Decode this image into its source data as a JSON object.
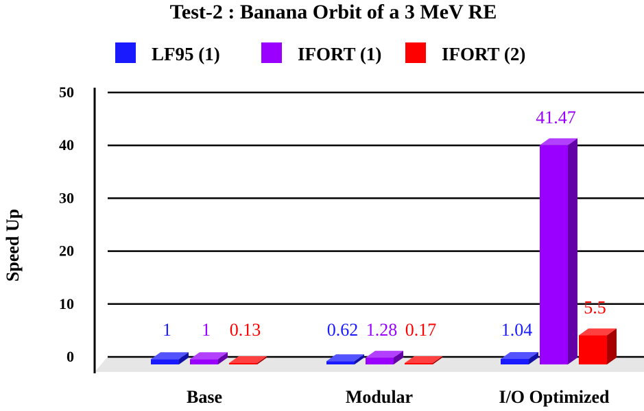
{
  "chart_data": {
    "type": "bar",
    "title": "Test-2 : Banana Orbit of a 3 MeV RE",
    "xlabel": "",
    "ylabel": "Speed Up",
    "categories": [
      "Base",
      "Modular",
      "I/O Optimized"
    ],
    "ylim": [
      0,
      50
    ],
    "yticks": [
      "0",
      "10",
      "20",
      "30",
      "40",
      "50"
    ],
    "grid": true,
    "legend_position": "top",
    "series": [
      {
        "name": "LF95 (1)",
        "color": "#1a1aff",
        "values": [
          1,
          0.62,
          1.04
        ],
        "labels": [
          "1",
          "0.62",
          "1.04"
        ]
      },
      {
        "name": "IFORT (1)",
        "color": "#9900ff",
        "values": [
          1,
          1.28,
          41.47
        ],
        "labels": [
          "1",
          "1.28",
          "41.47"
        ]
      },
      {
        "name": "IFORT (2)",
        "color": "#ff0000",
        "values": [
          0.13,
          0.17,
          5.5
        ],
        "labels": [
          "0.13",
          "0.17",
          "5.5"
        ]
      }
    ]
  }
}
